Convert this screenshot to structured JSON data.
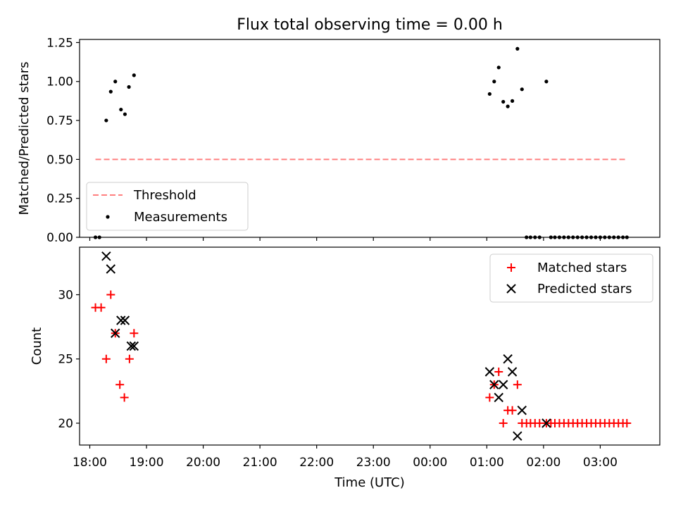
{
  "figure": {
    "title": "Flux total observing time = 0.00 h"
  },
  "chart_data": [
    {
      "type": "line",
      "panel": "top",
      "xlabel": "",
      "ylabel": "Matched/Predicted stars",
      "xlim": [
        -0.18,
        10.05
      ],
      "ylim": [
        0.0,
        1.27
      ],
      "yticks": [
        0.0,
        0.25,
        0.5,
        0.75,
        1.0,
        1.25
      ],
      "ytick_labels": [
        "0.00",
        "0.25",
        "0.50",
        "0.75",
        "1.00",
        "1.25"
      ],
      "xticks": [
        0,
        1,
        2,
        3,
        4,
        5,
        6,
        7,
        8,
        9
      ],
      "grid": false,
      "legend_position": "lower-left",
      "threshold": {
        "name": "Threshold",
        "x": [
          0.1,
          9.45
        ],
        "y": [
          0.5,
          0.5
        ],
        "color": "#ff7f7f",
        "style": "dashed"
      },
      "measurements": {
        "name": "Measurements",
        "color": "#000000",
        "x": [
          0.1,
          0.17,
          0.29,
          0.37,
          0.45,
          0.55,
          0.62,
          0.69,
          0.78,
          7.05,
          7.13,
          7.21,
          7.29,
          7.37,
          7.45,
          7.54,
          7.62,
          8.05,
          7.7,
          7.77,
          7.85,
          7.93,
          8.13,
          8.2,
          8.28,
          8.36,
          8.44,
          8.52,
          8.6,
          8.68,
          8.76,
          8.84,
          8.92,
          9.0,
          9.08,
          9.16,
          9.24,
          9.32,
          9.4,
          9.47
        ],
        "y": [
          0.0,
          0.0,
          0.75,
          0.935,
          1.0,
          0.82,
          0.79,
          0.965,
          1.04,
          0.92,
          1.0,
          1.09,
          0.87,
          0.84,
          0.875,
          1.21,
          0.95,
          1.0,
          0.0,
          0.0,
          0.0,
          0.0,
          0.0,
          0.0,
          0.0,
          0.0,
          0.0,
          0.0,
          0.0,
          0.0,
          0.0,
          0.0,
          0.0,
          0.0,
          0.0,
          0.0,
          0.0,
          0.0,
          0.0,
          0.0
        ]
      }
    },
    {
      "type": "scatter",
      "panel": "bottom",
      "xlabel": "Time (UTC)",
      "ylabel": "Count",
      "xlim": [
        -0.18,
        10.05
      ],
      "ylim": [
        18.3,
        33.7
      ],
      "yticks": [
        20,
        25,
        30
      ],
      "ytick_labels": [
        "20",
        "25",
        "30"
      ],
      "xticks": [
        0,
        1,
        2,
        3,
        4,
        5,
        6,
        7,
        8,
        9
      ],
      "xtick_labels": [
        "18:00",
        "19:00",
        "20:00",
        "21:00",
        "22:00",
        "23:00",
        "00:00",
        "01:00",
        "02:00",
        "03:00"
      ],
      "grid": false,
      "legend_position": "upper-right",
      "series": [
        {
          "name": "Matched stars",
          "marker": "plus",
          "color": "#ff0000",
          "x": [
            0.1,
            0.2,
            0.29,
            0.37,
            0.45,
            0.53,
            0.61,
            0.7,
            0.78,
            7.05,
            7.13,
            7.21,
            7.29,
            7.37,
            7.45,
            7.54,
            7.62,
            7.7,
            7.77,
            7.85,
            7.93,
            8.05,
            8.13,
            8.2,
            8.28,
            8.36,
            8.44,
            8.52,
            8.6,
            8.68,
            8.76,
            8.84,
            8.92,
            9.0,
            9.08,
            9.16,
            9.24,
            9.32,
            9.4,
            9.47
          ],
          "y": [
            29,
            29,
            25,
            30,
            27,
            23,
            22,
            25,
            27,
            22,
            23,
            24,
            20,
            21,
            21,
            23,
            20,
            20,
            20,
            20,
            20,
            20,
            20,
            20,
            20,
            20,
            20,
            20,
            20,
            20,
            20,
            20,
            20,
            20,
            20,
            20,
            20,
            20,
            20,
            20
          ]
        },
        {
          "name": "Predicted stars",
          "marker": "x",
          "color": "#000000",
          "x": [
            0.29,
            0.37,
            0.45,
            0.55,
            0.62,
            0.73,
            0.78,
            7.05,
            7.13,
            7.21,
            7.29,
            7.37,
            7.45,
            7.54,
            7.62,
            8.05
          ],
          "y": [
            33,
            32,
            27,
            28,
            28,
            26,
            26,
            24,
            23,
            22,
            23,
            25,
            24,
            19,
            21,
            20
          ]
        }
      ]
    }
  ]
}
